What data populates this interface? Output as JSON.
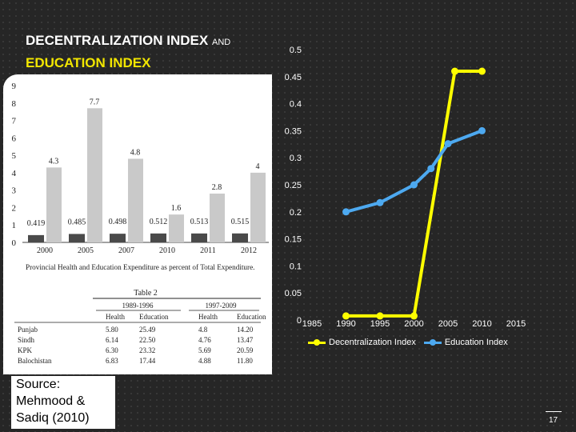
{
  "slide": {
    "title_line1": "DECENTRALIZATION INDEX",
    "title_and": "AND",
    "title_line2": "EDUCATION INDEX",
    "source": [
      "Source:",
      "Mehmood &",
      "Sadiq (2010)"
    ],
    "page_number": "17"
  },
  "colors": {
    "background": "#262626",
    "title_white": "#ffffff",
    "title_yellow": "#f2e600",
    "decentralization": "#ffff00",
    "education": "#4da9f0",
    "bar_light": "#c9c9c9",
    "bar_dark": "#4a4a4a"
  },
  "chart_data": [
    {
      "type": "line",
      "title": "",
      "x": [
        1985,
        1990,
        1995,
        2000,
        2005,
        2010,
        2015
      ],
      "x_tick_labels": [
        "1985",
        "1990",
        "1995",
        "2000",
        "2005",
        "2010",
        "2015"
      ],
      "xlim": [
        1985,
        2015
      ],
      "ylim": [
        0,
        0.5
      ],
      "y_ticks": [
        0,
        0.05,
        0.1,
        0.15,
        0.2,
        0.25,
        0.3,
        0.35,
        0.4,
        0.45,
        0.5
      ],
      "y_tick_labels": [
        "0",
        "0.05",
        "0.1",
        "0.15",
        "0.2",
        "0.25",
        "0.3",
        "0.35",
        "0.4",
        "0.45",
        "0.5"
      ],
      "grid": false,
      "legend_position": "bottom",
      "series": [
        {
          "name": "Decentralization Index",
          "color": "#ffff00",
          "points": [
            [
              1990,
              0.0075
            ],
            [
              1995,
              0.0075
            ],
            [
              2000,
              0.0075
            ],
            [
              2006,
              0.46
            ],
            [
              2010,
              0.46
            ]
          ]
        },
        {
          "name": "Education Index",
          "color": "#4da9f0",
          "points": [
            [
              1990,
              0.2
            ],
            [
              1995,
              0.217
            ],
            [
              2000,
              0.25
            ],
            [
              2002.5,
              0.28
            ],
            [
              2005,
              0.326
            ],
            [
              2010,
              0.35
            ]
          ]
        }
      ]
    },
    {
      "type": "bar",
      "title": "",
      "caption": "Provincial Health and Education Expenditure as percent of Total Expenditure.",
      "categories": [
        "2000",
        "2005",
        "2007",
        "2010",
        "2011",
        "2012"
      ],
      "ylim": [
        0,
        9
      ],
      "y_ticks": [
        "0",
        "1",
        "2",
        "3",
        "4",
        "5",
        "6",
        "7",
        "8",
        "9"
      ],
      "series": [
        {
          "values": [
            0.419,
            0.485,
            0.498,
            0.512,
            0.513,
            0.515
          ],
          "labels": [
            "0.419",
            "0.485",
            "0.498",
            "0.512",
            "0.513",
            "0.515"
          ],
          "color": "#4a4a4a"
        },
        {
          "values": [
            4.3,
            7.7,
            4.8,
            1.6,
            2.8,
            4
          ],
          "labels": [
            "4.3",
            "7.7",
            "4.8",
            "1.6",
            "2.8",
            "4"
          ],
          "color": "#c9c9c9"
        }
      ]
    },
    {
      "type": "table",
      "title": "Table 2",
      "group_headers": [
        "1989-1996",
        "1997-2009"
      ],
      "columns": [
        "",
        "Health",
        "Education",
        "Health",
        "Education"
      ],
      "rows": [
        [
          "Punjab",
          "5.80",
          "25.49",
          "4.8",
          "14.20"
        ],
        [
          "Sindh",
          "6.14",
          "22.50",
          "4.76",
          "13.47"
        ],
        [
          "KPK",
          "6.30",
          "23.32",
          "5.69",
          "20.59"
        ],
        [
          "Balochistan",
          "6.83",
          "17.44",
          "4.88",
          "11.80"
        ]
      ]
    }
  ]
}
